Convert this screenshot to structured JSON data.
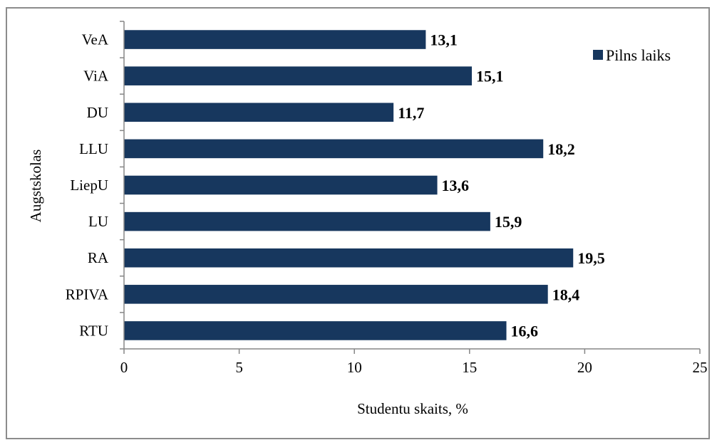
{
  "chart_data": {
    "type": "bar",
    "orientation": "horizontal",
    "categories": [
      "VeA",
      "ViA",
      "DU",
      "LLU",
      "LiepU",
      "LU",
      "RA",
      "RPIVA",
      "RTU"
    ],
    "series": [
      {
        "name": "Pilns laiks",
        "values": [
          13.1,
          15.1,
          11.7,
          18.2,
          13.6,
          15.9,
          19.5,
          18.4,
          16.6
        ]
      }
    ],
    "data_labels": [
      "13,1",
      "15,1",
      "11,7",
      "18,2",
      "13,6",
      "15,9",
      "19,5",
      "18,4",
      "16,6"
    ],
    "xlabel": "Studentu skaits, %",
    "ylabel": "Augstskolas",
    "xlim": [
      0,
      25
    ],
    "xticks": [
      0,
      5,
      10,
      15,
      20,
      25
    ],
    "grid": false,
    "legend_position": "top-right",
    "bar_color": "#17375e"
  }
}
